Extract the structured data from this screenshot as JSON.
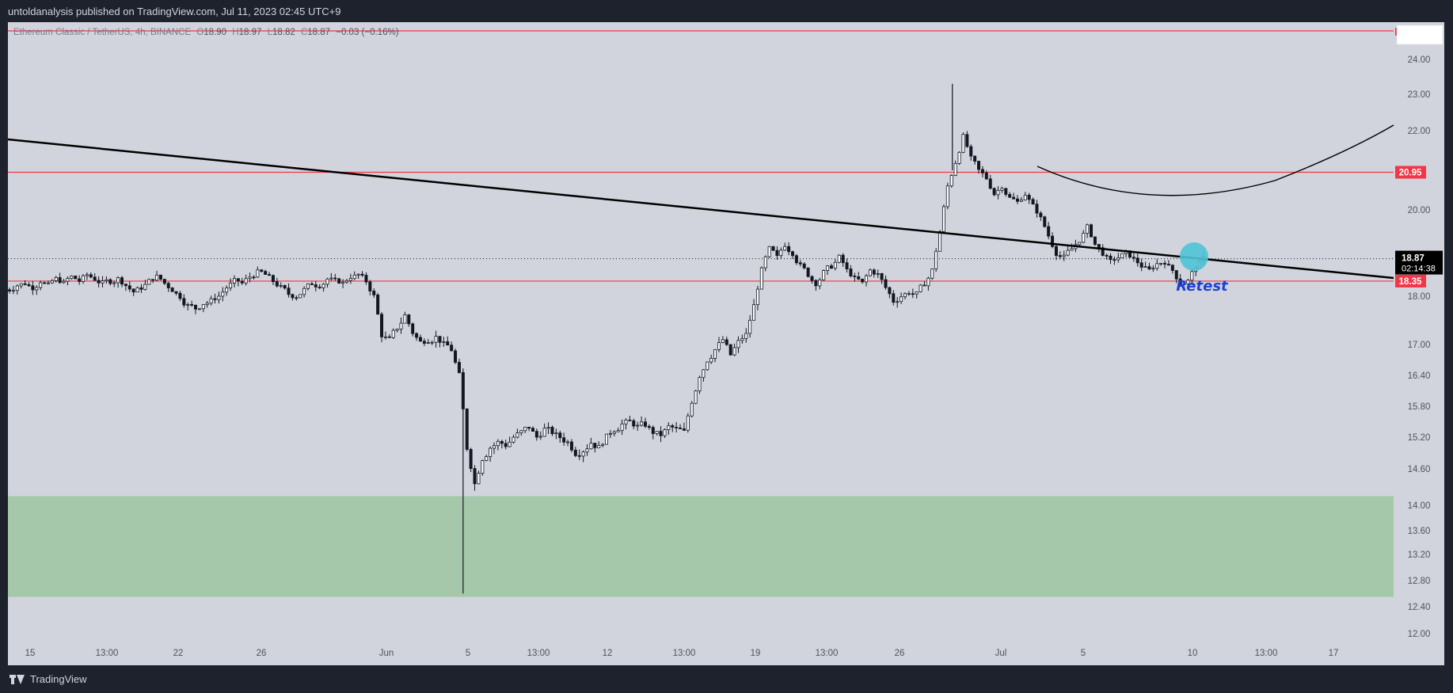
{
  "header": {
    "publisher_line": "untoldanalysis published on TradingView.com, Jul 11, 2023 02:45 UTC+9"
  },
  "legend": {
    "symbol": "Ethereum Classic / TetherUS, 4h, BINANCE",
    "open_label": "O",
    "open": "18.90",
    "high_label": "H",
    "high": "18.97",
    "low_label": "L",
    "low": "18.82",
    "close_label": "C",
    "close": "18.87",
    "change": "−0.03 (−0.16%)"
  },
  "footer": {
    "brand": "TradingView"
  },
  "colors": {
    "background": "#d1d4dc",
    "frame": "#1e222d",
    "candle": "#131722",
    "resistance_line": "#f23645",
    "demand_zone": "#a5c8aa",
    "retest_circle": "#4fc3d7",
    "annotation_text": "#1e40d6"
  },
  "chart_data": {
    "type": "candlestick",
    "price_axis": {
      "ticks": [
        "12.00",
        "12.40",
        "12.80",
        "13.20",
        "13.60",
        "14.00",
        "14.60",
        "15.20",
        "15.80",
        "16.40",
        "17.00",
        "18.00",
        "20.00",
        "22.00",
        "23.00",
        "24.00"
      ],
      "range": [
        11.8,
        25.2
      ]
    },
    "time_axis": {
      "ticks": [
        "15",
        "13:00",
        "22",
        "26",
        "Jun",
        "5",
        "13:00",
        "12",
        "13:00",
        "19",
        "13:00",
        "26",
        "Jul",
        "5",
        "10",
        "13:00",
        "17"
      ]
    },
    "price_labels": [
      {
        "value": "20.95",
        "kind": "resistance"
      },
      {
        "value": "18.35",
        "kind": "resistance"
      },
      {
        "value": "18.87",
        "kind": "last-price",
        "countdown": "02:14:38"
      }
    ],
    "horizontal_lines": [
      24.8,
      20.95,
      18.35
    ],
    "last_price": 18.87,
    "demand_zone": [
      12.55,
      14.15
    ],
    "annotations": [
      {
        "text": "Retest"
      }
    ],
    "series_close_path": [
      18.15,
      18.25,
      18.3,
      18.2,
      18.35,
      18.25,
      18.4,
      18.3,
      18.45,
      18.35,
      18.5,
      18.4,
      18.3,
      18.35,
      18.4,
      18.25,
      18.1,
      18.2,
      18.35,
      18.45,
      18.3,
      18.15,
      18.0,
      17.8,
      17.75,
      17.85,
      17.9,
      18.0,
      18.2,
      18.35,
      18.3,
      18.45,
      18.55,
      18.5,
      18.35,
      18.2,
      18.05,
      18.0,
      18.15,
      18.3,
      18.25,
      18.4,
      18.35,
      18.3,
      18.45,
      18.5,
      18.35,
      18.0,
      17.2,
      17.1,
      17.35,
      17.6,
      17.25,
      17.05,
      17.1,
      17.15,
      17.0,
      16.9,
      16.4,
      15.0,
      14.35,
      14.8,
      15.0,
      15.1,
      15.05,
      15.2,
      15.3,
      15.4,
      15.2,
      15.35,
      15.3,
      15.2,
      15.1,
      14.9,
      14.95,
      15.1,
      15.0,
      15.2,
      15.35,
      15.45,
      15.5,
      15.4,
      15.45,
      15.3,
      15.25,
      15.4,
      15.35,
      15.3,
      15.9,
      16.4,
      16.7,
      16.9,
      17.1,
      16.8,
      17.05,
      17.2,
      17.8,
      18.6,
      19.1,
      18.9,
      19.2,
      19.0,
      18.7,
      18.5,
      18.3,
      18.55,
      18.7,
      18.9,
      18.6,
      18.4,
      18.3,
      18.6,
      18.5,
      18.2,
      17.9,
      18.0,
      18.1,
      18.05,
      18.3,
      18.6,
      19.5,
      20.6,
      21.2,
      21.85,
      21.3,
      21.0,
      20.8,
      20.4,
      20.6,
      20.3,
      20.2,
      20.4,
      20.1,
      19.8,
      19.4,
      19.0,
      18.9,
      19.1,
      19.3,
      19.6,
      19.2,
      19.0,
      18.8,
      18.9,
      19.0,
      18.85,
      18.7,
      18.6,
      18.75,
      18.8,
      18.6,
      18.3,
      18.35,
      18.7,
      18.87
    ]
  }
}
